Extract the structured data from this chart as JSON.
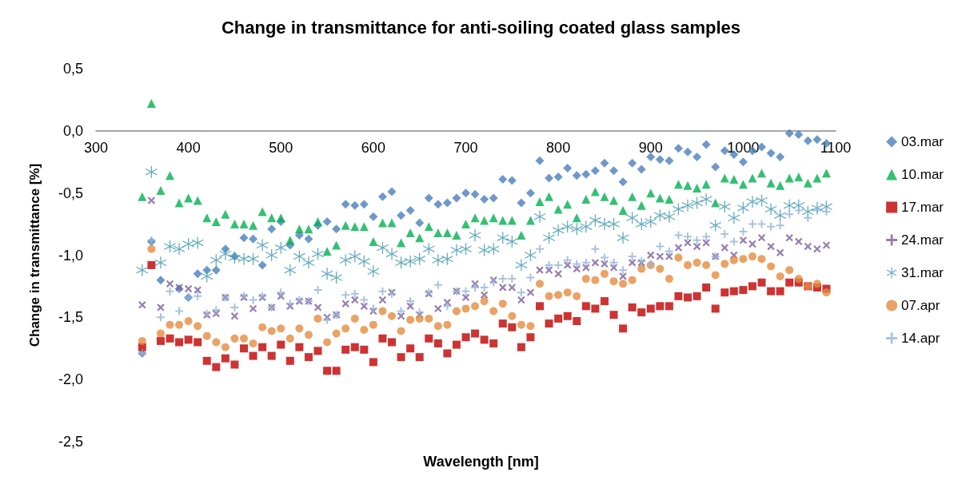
{
  "chart_data": {
    "type": "scatter",
    "title": "Change in transmittance for anti-soiling coated glass samples",
    "xlabel": "Wavelength [nm]",
    "ylabel": "Change in transmittance [%]",
    "x": [
      350,
      360,
      370,
      380,
      390,
      400,
      410,
      420,
      430,
      440,
      450,
      460,
      470,
      480,
      490,
      500,
      510,
      520,
      530,
      540,
      550,
      560,
      570,
      580,
      590,
      600,
      610,
      620,
      630,
      640,
      650,
      660,
      670,
      680,
      690,
      700,
      710,
      720,
      730,
      740,
      750,
      760,
      770,
      780,
      790,
      800,
      810,
      820,
      830,
      840,
      850,
      860,
      870,
      880,
      890,
      900,
      910,
      920,
      930,
      940,
      950,
      960,
      970,
      980,
      990,
      1000,
      1010,
      1020,
      1030,
      1040,
      1050,
      1060,
      1070,
      1080,
      1090
    ],
    "xlim": [
      300,
      1100
    ],
    "xticks": [
      300,
      400,
      500,
      600,
      700,
      800,
      900,
      1000,
      1100
    ],
    "ylim": [
      -2.5,
      0.5
    ],
    "yticks": [
      {
        "value": -2.5,
        "label": "-2,5"
      },
      {
        "value": -2,
        "label": "-2,0"
      },
      {
        "value": -1.5,
        "label": "-1,5"
      },
      {
        "value": -1,
        "label": "-1,0"
      },
      {
        "value": -0.5,
        "label": "-0,5"
      },
      {
        "value": 0,
        "label": "0,0"
      },
      {
        "value": 0.5,
        "label": "0,5"
      }
    ],
    "grid": false,
    "legend": "right",
    "series": [
      {
        "name": "03.mar",
        "color": "#4a7ebb",
        "marker": "diamond",
        "values": [
          -1.79,
          -0.89,
          -1.2,
          null,
          -1.27,
          -1.34,
          -1.15,
          -1.12,
          -1.12,
          -0.95,
          -1.01,
          -0.86,
          -0.87,
          -1.08,
          -0.79,
          -0.73,
          -0.92,
          -0.84,
          -0.87,
          -0.76,
          -0.73,
          -0.79,
          -0.59,
          -0.6,
          -0.59,
          -0.69,
          -0.53,
          -0.49,
          -0.68,
          -0.64,
          -0.74,
          -0.54,
          -0.59,
          -0.58,
          -0.54,
          -0.5,
          -0.51,
          -0.55,
          -0.54,
          -0.39,
          -0.4,
          -0.58,
          -0.5,
          -0.24,
          -0.38,
          -0.37,
          -0.3,
          -0.36,
          -0.35,
          -0.32,
          -0.26,
          -0.32,
          -0.41,
          -0.26,
          -0.31,
          -0.21,
          -0.23,
          -0.24,
          -0.14,
          -0.17,
          -0.21,
          -0.11,
          -0.29,
          -0.16,
          -0.19,
          -0.25,
          -0.16,
          -0.13,
          -0.18,
          -0.21,
          -0.02,
          -0.03,
          -0.08,
          -0.07,
          -0.1
        ]
      },
      {
        "name": "10.mar",
        "color": "#00b050",
        "marker": "triangle",
        "values": [
          -0.53,
          0.22,
          -0.48,
          -0.36,
          -0.58,
          -0.54,
          -0.56,
          -0.7,
          -0.73,
          -0.67,
          -0.75,
          -0.75,
          -0.76,
          -0.65,
          -0.7,
          -0.7,
          -0.88,
          -0.79,
          -0.79,
          -0.73,
          -0.97,
          -0.92,
          -0.76,
          -0.77,
          -0.77,
          -0.89,
          -0.74,
          -0.74,
          -0.9,
          -0.82,
          -0.86,
          -0.77,
          -0.82,
          -0.82,
          -0.84,
          -0.75,
          -0.7,
          -0.72,
          -0.7,
          -0.72,
          -0.72,
          -0.84,
          -0.72,
          -0.57,
          -0.53,
          -0.63,
          -0.59,
          -0.7,
          -0.55,
          -0.49,
          -0.53,
          -0.56,
          -0.64,
          -0.53,
          -0.6,
          -0.5,
          -0.54,
          -0.55,
          -0.43,
          -0.44,
          -0.46,
          -0.43,
          -0.58,
          -0.38,
          -0.39,
          -0.43,
          -0.38,
          -0.34,
          -0.42,
          -0.44,
          -0.38,
          -0.37,
          -0.42,
          -0.38,
          -0.34
        ]
      },
      {
        "name": "17.mar",
        "color": "#c00000",
        "marker": "square",
        "values": [
          -1.74,
          -1.08,
          -1.69,
          -1.67,
          -1.7,
          -1.68,
          -1.7,
          -1.85,
          -1.9,
          -1.83,
          -1.88,
          -1.75,
          -1.81,
          -1.74,
          -1.81,
          -1.72,
          -1.85,
          -1.74,
          -1.82,
          -1.77,
          -1.93,
          -1.93,
          -1.76,
          -1.74,
          -1.76,
          -1.86,
          -1.67,
          -1.7,
          -1.82,
          -1.75,
          -1.82,
          -1.67,
          -1.71,
          -1.79,
          -1.72,
          -1.66,
          -1.63,
          -1.68,
          -1.71,
          -1.55,
          -1.58,
          -1.74,
          -1.66,
          -1.41,
          -1.55,
          -1.51,
          -1.49,
          -1.53,
          -1.41,
          -1.43,
          -1.37,
          -1.48,
          -1.59,
          -1.42,
          -1.46,
          -1.43,
          -1.41,
          -1.41,
          -1.33,
          -1.34,
          -1.33,
          -1.26,
          -1.43,
          -1.3,
          -1.29,
          -1.28,
          -1.25,
          -1.22,
          -1.29,
          -1.29,
          -1.22,
          -1.22,
          -1.25,
          -1.26,
          -1.27
        ]
      },
      {
        "name": "24.mar",
        "color": "#7b5c9e",
        "marker": "cross",
        "values": [
          -1.4,
          -0.56,
          -1.42,
          -1.23,
          -1.26,
          -1.27,
          -1.28,
          -1.48,
          -1.47,
          -1.34,
          -1.49,
          -1.34,
          -1.43,
          -1.34,
          -1.42,
          -1.33,
          -1.41,
          -1.37,
          -1.37,
          -1.42,
          -1.5,
          -1.48,
          -1.39,
          -1.36,
          -1.41,
          -1.45,
          -1.36,
          -1.3,
          -1.49,
          -1.41,
          -1.48,
          -1.31,
          -1.43,
          -1.38,
          -1.29,
          -1.34,
          -1.23,
          -1.32,
          -1.2,
          -1.26,
          -1.26,
          -1.36,
          -1.3,
          -1.12,
          -1.12,
          -1.15,
          -1.08,
          -1.11,
          -1.1,
          -1.06,
          -1.07,
          -1.1,
          -1.17,
          -1.06,
          -1.06,
          -1.0,
          -1.01,
          -1.01,
          -0.94,
          -0.9,
          -0.93,
          -0.9,
          -1.01,
          -0.94,
          -1.0,
          -0.88,
          -0.91,
          -0.86,
          -0.93,
          -0.98,
          -0.86,
          -0.89,
          -0.93,
          -0.95,
          -0.92
        ]
      },
      {
        "name": "31.mar",
        "color": "#4198af",
        "marker": "star",
        "values": [
          -1.12,
          -0.33,
          -1.06,
          -0.93,
          -0.95,
          -0.91,
          -0.9,
          -1.17,
          -1.04,
          -0.99,
          -1.02,
          -1.03,
          -1.03,
          -0.92,
          -1.0,
          -0.94,
          -1.12,
          -1.01,
          -1.06,
          -0.99,
          -1.15,
          -1.18,
          -1.04,
          -1.01,
          -1.05,
          -1.13,
          -0.94,
          -0.99,
          -1.06,
          -1.05,
          -1.03,
          -0.95,
          -1.04,
          -1.03,
          -0.96,
          -0.95,
          -0.84,
          -0.96,
          -0.95,
          -0.86,
          -0.89,
          -1.08,
          -1.0,
          -0.69,
          -0.86,
          -0.8,
          -0.77,
          -0.79,
          -0.77,
          -0.72,
          -0.75,
          -0.75,
          -0.86,
          -0.7,
          -0.75,
          -0.73,
          -0.68,
          -0.69,
          -0.63,
          -0.6,
          -0.58,
          -0.55,
          -0.76,
          -0.61,
          -0.7,
          -0.62,
          -0.57,
          -0.56,
          -0.63,
          -0.68,
          -0.6,
          -0.6,
          -0.65,
          -0.62,
          -0.61
        ]
      },
      {
        "name": "07.apr",
        "color": "#e58b3e",
        "marker": "circle",
        "values": [
          -1.69,
          -0.95,
          -1.63,
          -1.56,
          -1.56,
          -1.53,
          -1.57,
          -1.65,
          -1.7,
          -1.74,
          -1.67,
          -1.67,
          -1.71,
          -1.58,
          -1.61,
          -1.59,
          -1.67,
          -1.59,
          -1.64,
          -1.51,
          -1.7,
          -1.63,
          -1.59,
          -1.51,
          -1.6,
          -1.56,
          -1.45,
          -1.49,
          -1.61,
          -1.52,
          -1.51,
          -1.51,
          -1.57,
          -1.56,
          -1.45,
          -1.43,
          -1.41,
          -1.37,
          -1.45,
          -1.39,
          -1.49,
          -1.56,
          -1.57,
          -1.23,
          -1.33,
          -1.32,
          -1.3,
          -1.33,
          -1.19,
          -1.2,
          -1.15,
          -1.21,
          -1.23,
          -1.2,
          -1.11,
          -1.08,
          -1.11,
          -1.19,
          -1.02,
          -1.08,
          -1.06,
          -1.08,
          -1.16,
          -1.07,
          -1.04,
          -1.03,
          -1.01,
          -1.03,
          -1.09,
          -1.17,
          -1.12,
          -1.19,
          -1.25,
          -1.23,
          -1.3
        ]
      },
      {
        "name": "14.apr",
        "color": "#95b3d7",
        "marker": "plus",
        "values": [
          -1.79,
          -0.88,
          -1.5,
          -1.29,
          -1.45,
          -1.34,
          -1.33,
          -1.47,
          -1.44,
          -1.34,
          -1.42,
          -1.33,
          -1.36,
          -1.33,
          -1.42,
          -1.3,
          -1.39,
          -1.36,
          -1.37,
          -1.28,
          -1.52,
          -1.48,
          -1.32,
          -1.31,
          -1.36,
          -1.43,
          -1.29,
          -1.31,
          -1.45,
          -1.37,
          -1.46,
          -1.3,
          -1.24,
          -1.41,
          -1.29,
          -1.29,
          -1.26,
          -1.26,
          -1.22,
          -1.19,
          -1.19,
          -1.3,
          -1.18,
          -0.95,
          -1.08,
          -1.08,
          -1.04,
          -1.07,
          -1.06,
          -0.95,
          -1.02,
          -1.06,
          -1.12,
          -1.01,
          -1.05,
          -1.07,
          -0.93,
          -0.97,
          -0.84,
          -0.85,
          -0.88,
          -0.85,
          -1.01,
          -0.83,
          -0.89,
          -0.81,
          -0.75,
          -0.75,
          -0.77,
          -0.76,
          -0.67,
          -0.64,
          -0.7,
          -0.64,
          -0.65
        ]
      }
    ]
  }
}
